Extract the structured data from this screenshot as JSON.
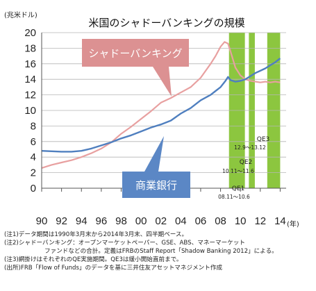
{
  "chart_data": {
    "type": "line",
    "title": "米国のシャドーバンキングの規模",
    "ylabel": "(兆米ドル)",
    "xunit": "(年)",
    "ylim": [
      0,
      20
    ],
    "yticks": [
      0,
      2,
      4,
      6,
      8,
      10,
      12,
      14,
      16,
      18,
      20
    ],
    "xlim": [
      1990,
      2014.6
    ],
    "xticks": [
      {
        "x": 1990,
        "label": "90"
      },
      {
        "x": 1992,
        "label": "92"
      },
      {
        "x": 1994,
        "label": "94"
      },
      {
        "x": 1996,
        "label": "96"
      },
      {
        "x": 1998,
        "label": "98"
      },
      {
        "x": 2000,
        "label": "00"
      },
      {
        "x": 2002,
        "label": "02"
      },
      {
        "x": 2004,
        "label": "04"
      },
      {
        "x": 2006,
        "label": "06"
      },
      {
        "x": 2008,
        "label": "08"
      },
      {
        "x": 2010,
        "label": "10"
      },
      {
        "x": 2012,
        "label": "12"
      },
      {
        "x": 2014,
        "label": "14"
      }
    ],
    "grid": true,
    "series": [
      {
        "name": "シャドーバンキング",
        "color": "#e8a0a0",
        "x": [
          1990,
          1991,
          1992,
          1993,
          1994,
          1995,
          1996,
          1997,
          1998,
          1999,
          2000,
          2001,
          2002,
          2003,
          2004,
          2005,
          2006,
          2007,
          2007.5,
          2008,
          2008.4,
          2008.75,
          2009,
          2009.5,
          2010,
          2010.5,
          2011,
          2011.5,
          2012,
          2012.5,
          2013,
          2013.5,
          2014
        ],
        "values": [
          2.6,
          3.0,
          3.3,
          3.6,
          4.0,
          4.5,
          5.1,
          5.9,
          7.0,
          7.9,
          8.9,
          9.9,
          11.0,
          11.6,
          12.3,
          13.0,
          14.2,
          16.0,
          17.0,
          18.2,
          18.8,
          18.6,
          17.6,
          15.5,
          14.5,
          14.0,
          13.8,
          13.7,
          13.6,
          13.7,
          13.6,
          13.7,
          13.6
        ]
      },
      {
        "name": "商業銀行",
        "color": "#4f7fbf",
        "x": [
          1990,
          1991,
          1992,
          1993,
          1994,
          1995,
          1996,
          1997,
          1998,
          1999,
          2000,
          2001,
          2002,
          2003,
          2004,
          2005,
          2006,
          2007,
          2007.5,
          2008,
          2008.5,
          2008.75,
          2009,
          2009.5,
          2010,
          2010.5,
          2011,
          2011.5,
          2012,
          2012.5,
          2013,
          2013.5,
          2014
        ],
        "values": [
          4.8,
          4.75,
          4.7,
          4.7,
          4.8,
          5.1,
          5.5,
          5.9,
          6.4,
          6.8,
          7.3,
          7.8,
          8.2,
          8.7,
          9.6,
          10.3,
          11.3,
          12.0,
          12.5,
          13.0,
          13.8,
          14.3,
          13.9,
          13.7,
          13.8,
          14.0,
          14.4,
          14.8,
          15.1,
          15.4,
          15.8,
          16.2,
          16.7
        ]
      }
    ],
    "callouts": [
      {
        "text": "シャドーバンキング",
        "fill": "#dc9192"
      },
      {
        "text": "商業銀行",
        "fill": "#5b87c5"
      }
    ],
    "qe_periods": [
      {
        "name": "QE1",
        "dates": "08.11～10.6",
        "start": 2008.85,
        "end": 2010.45
      },
      {
        "name": "QE2",
        "dates": "10.11～11.6",
        "start": 2010.85,
        "end": 2011.45
      },
      {
        "name": "QE3",
        "dates": "12.9～13.12",
        "start": 2012.7,
        "end": 2014.0
      }
    ],
    "qe_color": "#8cc63f"
  },
  "notes": [
    "(注1)データ期間は1990年3月末から2014年3月末、四半期ベース。",
    "(注2)シャドーバンキング：オープンマーケットペーパー、GSE、ABS、マネーマーケット",
    "ファンドなどの合計。定義はFRBのStaff Report「Shadow Banking 2012」による。",
    "(注3)網掛けはそれぞれのQE実施期間。QE3は緩小開始直前まで。",
    "(出所)FRB「Flow of Funds」のデータを基に三井住友アセットマネジメント作成"
  ]
}
